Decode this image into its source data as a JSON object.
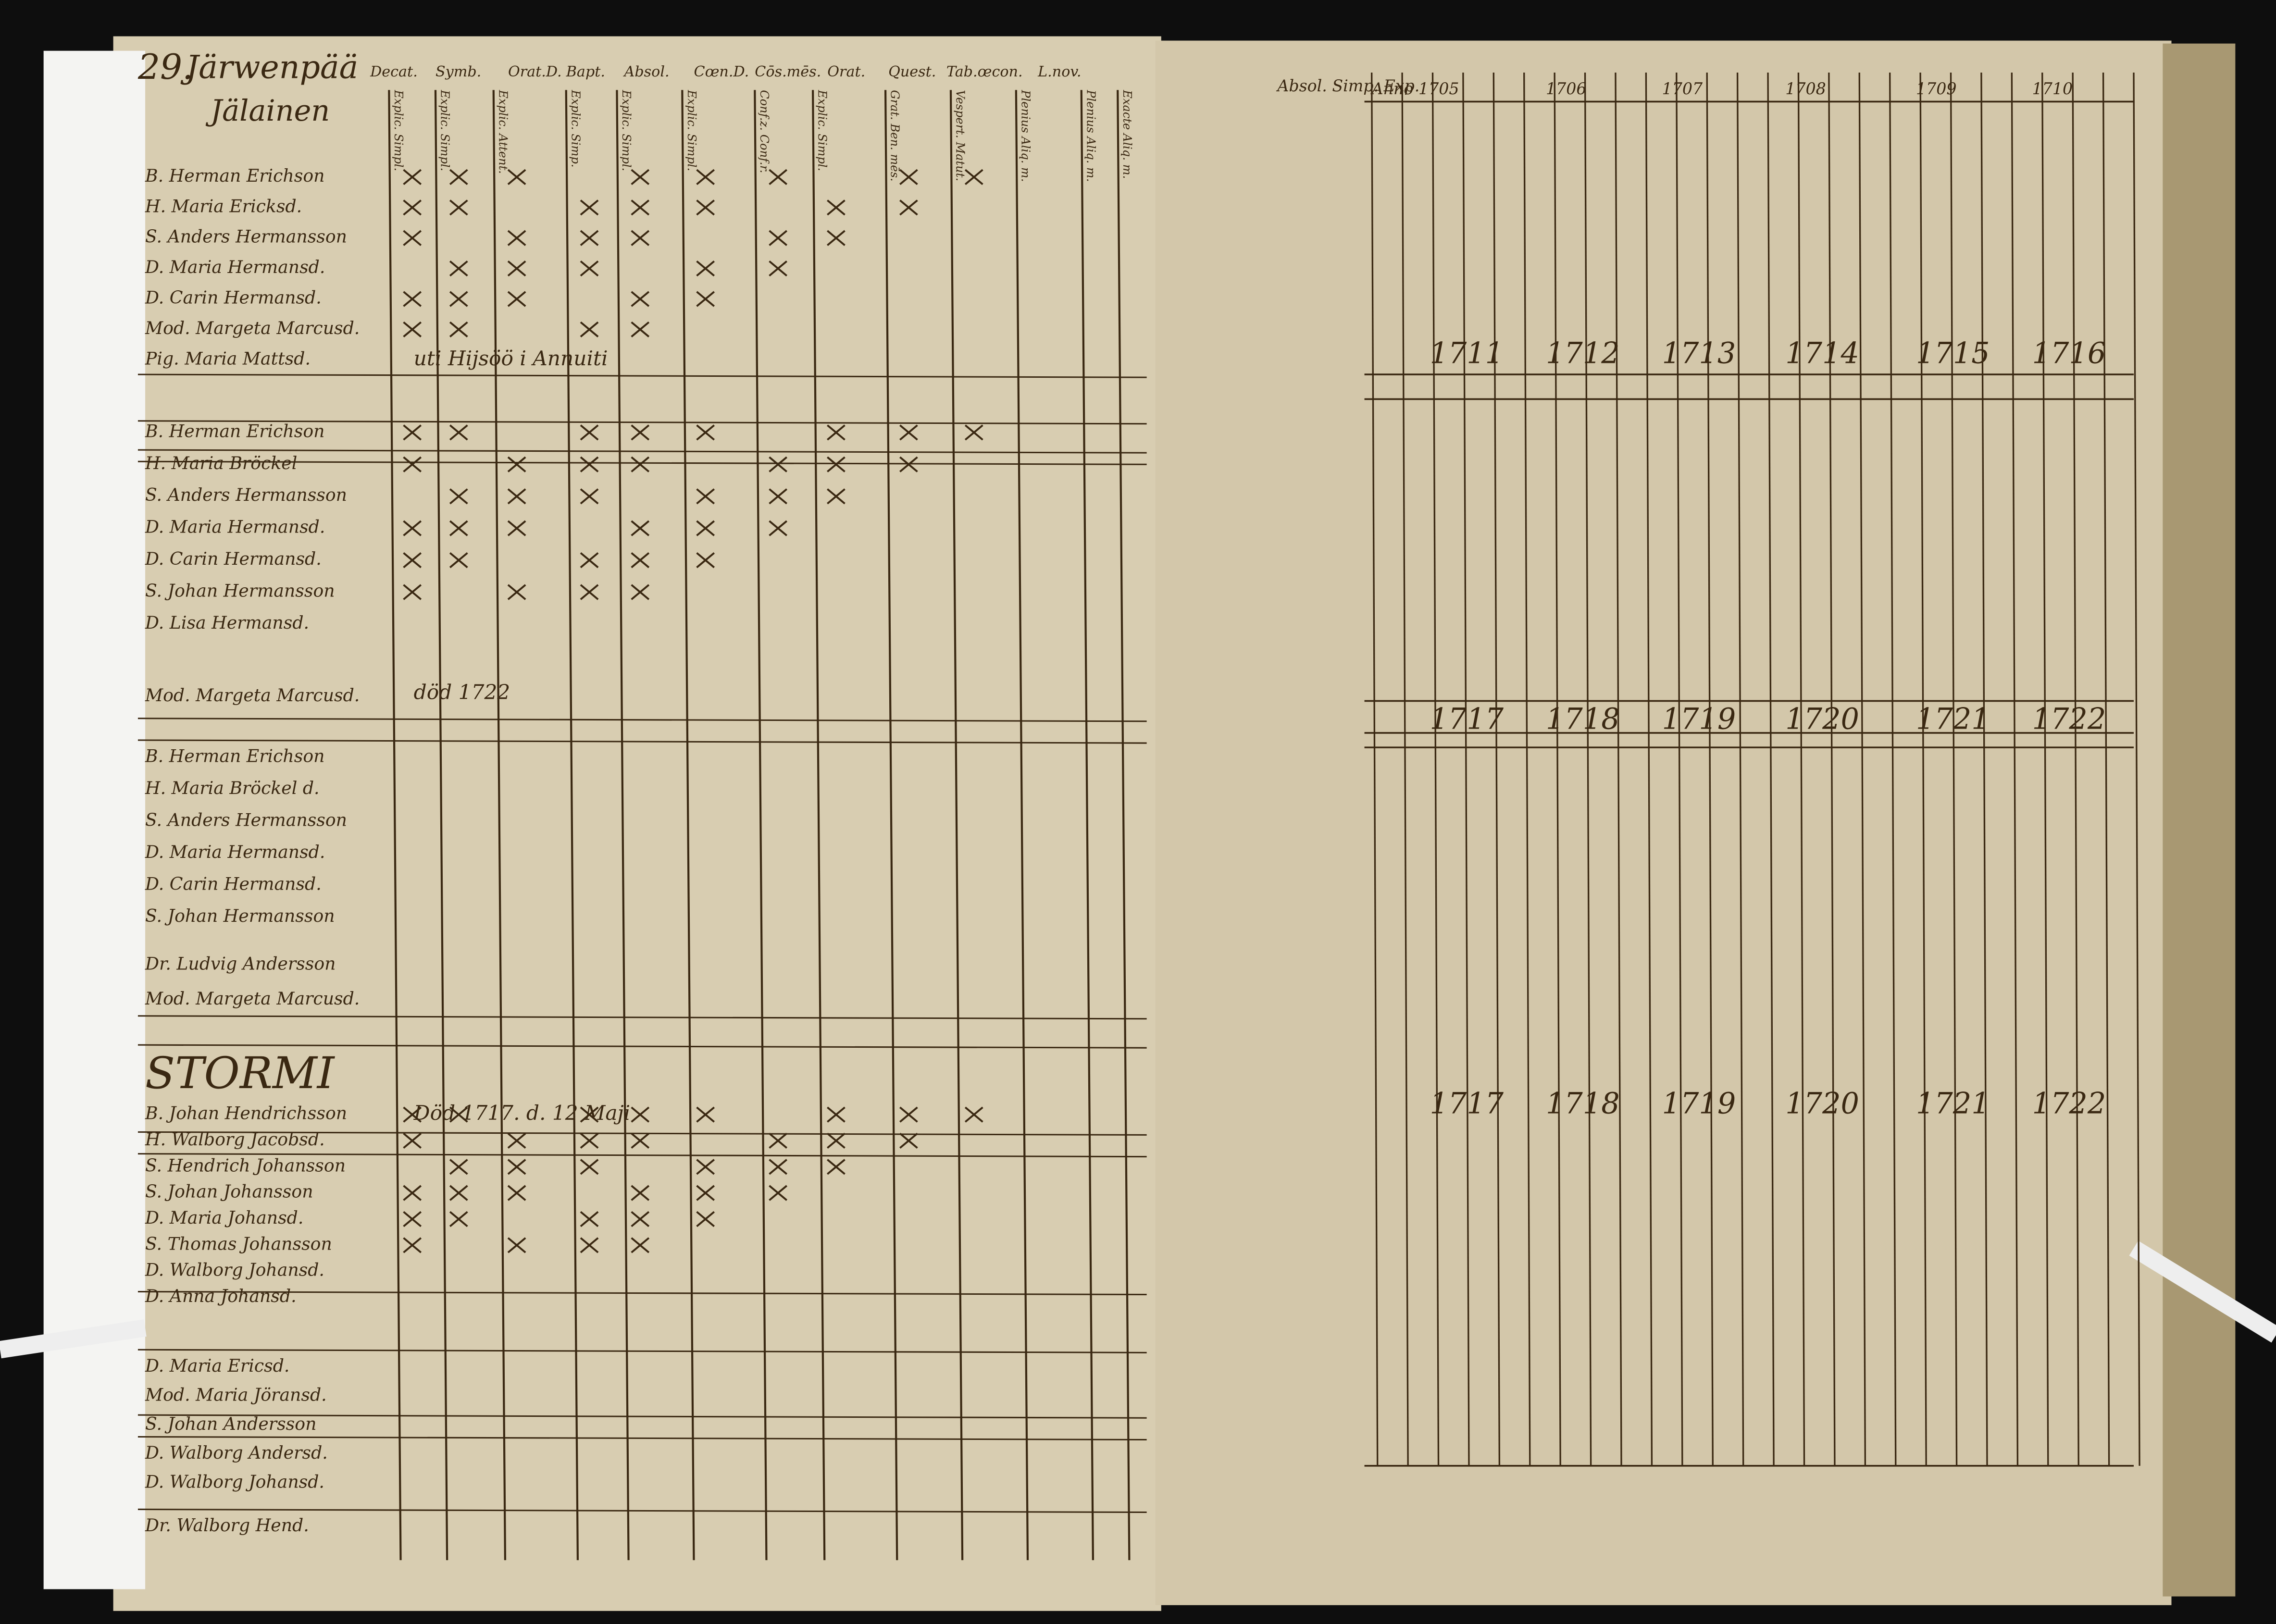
{
  "header": {
    "number": "29.",
    "village": "Järwenpää",
    "farm": "Jälainen"
  },
  "column_headers": [
    "Decat.",
    "Symb.",
    "Orat.D.",
    "Bapt.",
    "Absol.",
    "Cœn.D.",
    "Cōs.mēs.",
    "Orat.",
    "Quest.",
    "Tab.œcon.",
    "L.nov."
  ],
  "sub_headers": [
    "Explic. Simpl.",
    "Explic. Simpl.",
    "Explic. Attent.",
    "Explic. Simp.",
    "Explic. Simpl.",
    "Explic. Simpl.",
    "Conf.z. Conf.r.",
    "Explic. Simpl.",
    "Grat. Ben. mēs.",
    "Vespert. Matut.",
    "Plenius Aliq. m.",
    "Plenius Aliq. m.",
    "Exacte Aliq. m."
  ],
  "groups": [
    {
      "members": [
        "B. Herman Erichson",
        "H. Maria Ericksd.",
        "S. Anders Hermansson",
        "D. Maria Hermansd.",
        "D. Carin Hermansd.",
        "Mod. Margeta Marcusd.",
        "Pig. Maria Mattsd."
      ],
      "note": "uti Hijsöö i Annuiti"
    },
    {
      "members": [
        "B. Herman Erichson",
        "H. Maria Bröckel",
        "S. Anders Hermansson",
        "D. Maria Hermansd.",
        "D. Carin Hermansd.",
        "S. Johan Hermansson",
        "D. Lisa Hermansd."
      ]
    },
    {
      "members": [
        "Mod. Margeta Marcusd."
      ],
      "note": "död 1722"
    },
    {
      "members": [
        "B. Herman Erichson",
        "H. Maria Bröckel d.",
        "S. Anders Hermansson",
        "D. Maria Hermansd.",
        "D. Carin Hermansd.",
        "S. Johan Hermansson"
      ]
    },
    {
      "members": [
        "Dr. Ludvig Andersson",
        "Mod. Margeta Marcusd."
      ]
    },
    {
      "members": [
        "B. Johan Hendrichsson",
        "H. Walborg Jacobsd.",
        "S. Hendrich Johansson",
        "S. Johan Johansson",
        "D. Maria Johansd.",
        "S. Thomas Johansson",
        "D. Walborg Johansd.",
        "D. Anna Johansd."
      ],
      "note": "Död 1717. d. 12 Maji"
    },
    {
      "members": [
        "D. Maria Ericsd.",
        "Mod. Maria Jöransd.",
        "S. Johan Andersson",
        "D. Walborg Andersd."
      ]
    },
    {
      "members": [
        "D. Walborg Johansd.",
        "Dr. Walborg Hend."
      ]
    }
  ],
  "village_heading": "STORMI",
  "right_header": "Absol. Simp. Exp.",
  "year_rows": [
    [
      "Anno 1705",
      "1706",
      "1707",
      "1708",
      "1709",
      "1710"
    ],
    [
      "1711",
      "1712",
      "1713",
      "1714",
      "1715",
      "1716"
    ],
    [
      "1717",
      "1718",
      "1719",
      "1720",
      "1721",
      "1722"
    ],
    [
      "1717",
      "1718",
      "1719",
      "1720",
      "1721",
      "1722"
    ]
  ]
}
